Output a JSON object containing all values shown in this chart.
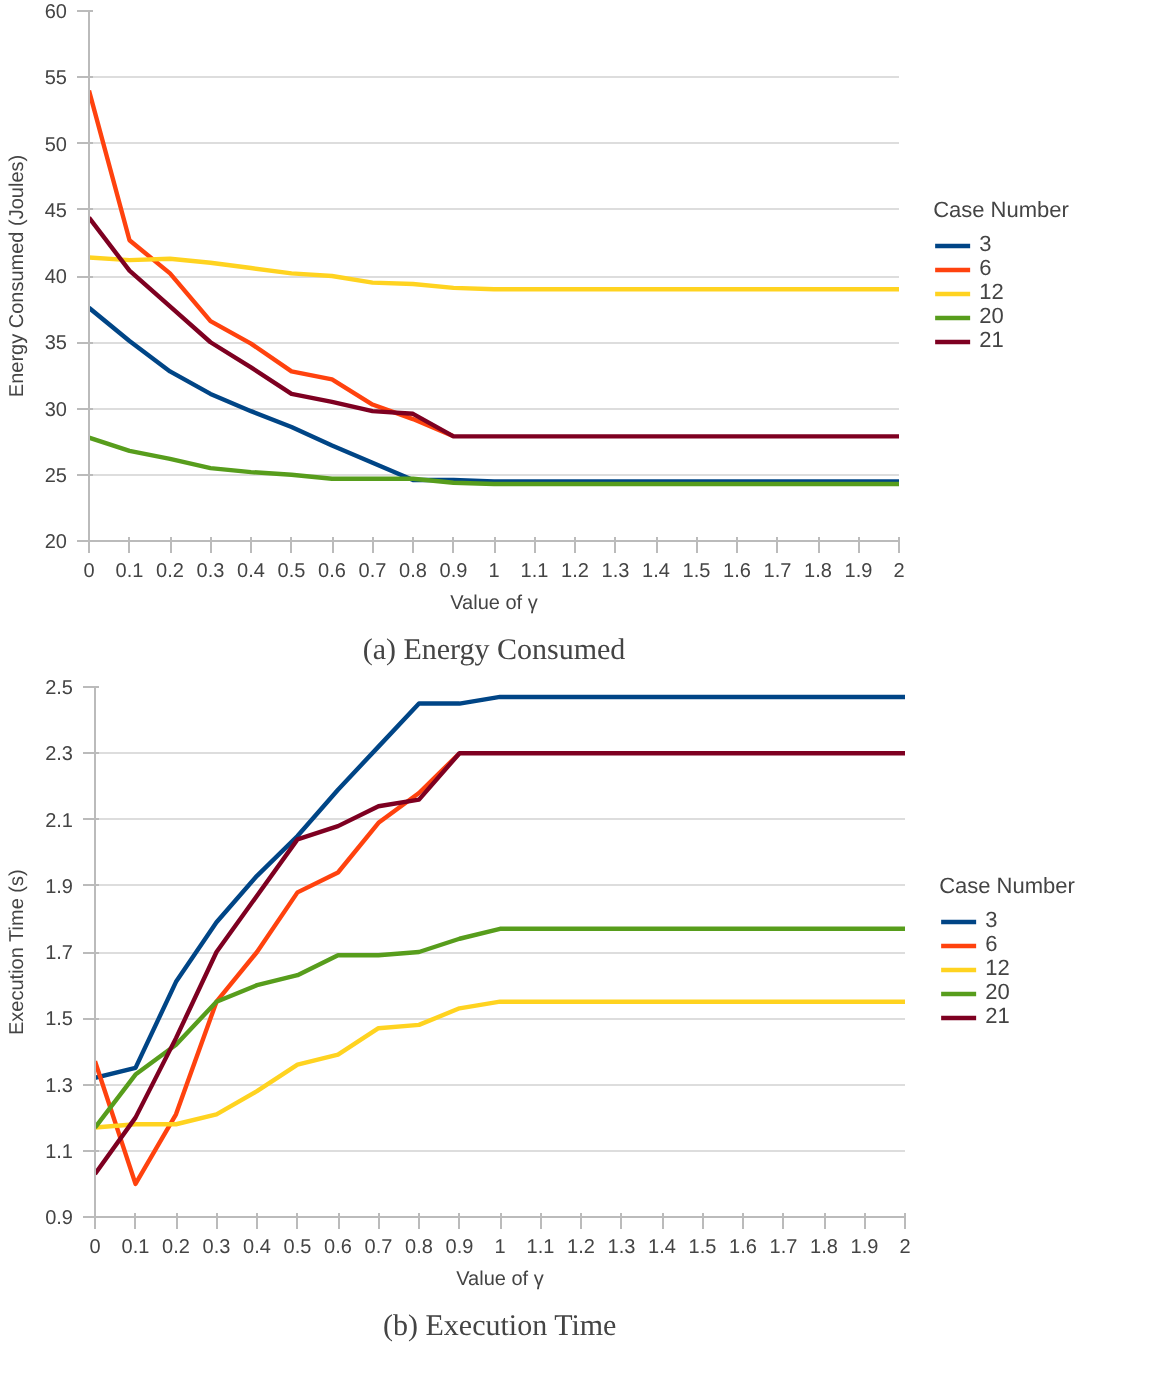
{
  "chart_data": [
    {
      "type": "line",
      "title": "(a) Energy Consumed",
      "xlabel": "Value of γ",
      "ylabel": "Energy Consumed (Joules)",
      "legend_title": "Case Number",
      "legend": "right",
      "grid": "y",
      "marker": "none",
      "line_style": "solid",
      "x": [
        0,
        0.1,
        0.2,
        0.3,
        0.4,
        0.5,
        0.6,
        0.7,
        0.8,
        0.9,
        1,
        1.1,
        1.2,
        1.3,
        1.4,
        1.5,
        1.6,
        1.7,
        1.8,
        1.9,
        2
      ],
      "xlim": [
        0,
        2
      ],
      "xticks": [
        0,
        0.1,
        0.2,
        0.3,
        0.4,
        0.5,
        0.6,
        0.7,
        0.8,
        0.9,
        1,
        1.1,
        1.2,
        1.3,
        1.4,
        1.5,
        1.6,
        1.7,
        1.8,
        1.9,
        2
      ],
      "ylim": [
        20,
        60
      ],
      "yticks": [
        20,
        25,
        30,
        35,
        40,
        45,
        50,
        55,
        60
      ],
      "series": [
        {
          "name": "3",
          "color": "#004586",
          "values": [
            37.6,
            35.1,
            32.8,
            31.1,
            29.8,
            28.6,
            27.2,
            25.9,
            24.6,
            24.6,
            24.5,
            24.5,
            24.5,
            24.5,
            24.5,
            24.5,
            24.5,
            24.5,
            24.5,
            24.5,
            24.5
          ]
        },
        {
          "name": "6",
          "color": "#ff420e",
          "values": [
            54,
            42.7,
            40.2,
            36.6,
            34.9,
            32.8,
            32.2,
            30.3,
            29.2,
            27.9,
            null,
            null,
            null,
            null,
            null,
            null,
            null,
            null,
            null,
            null,
            null
          ]
        },
        {
          "name": "12",
          "color": "#ffd320",
          "values": [
            41.4,
            41.2,
            41.3,
            41.0,
            40.6,
            40.2,
            40.0,
            39.5,
            39.4,
            39.1,
            39.0,
            39.0,
            39.0,
            39.0,
            39.0,
            39.0,
            39.0,
            39.0,
            39.0,
            39.0,
            39.0
          ]
        },
        {
          "name": "20",
          "color": "#579d1c",
          "values": [
            27.8,
            26.8,
            26.2,
            25.5,
            25.2,
            25.0,
            24.7,
            24.7,
            24.7,
            24.4,
            24.3,
            24.3,
            24.3,
            24.3,
            24.3,
            24.3,
            24.3,
            24.3,
            24.3,
            24.3,
            24.3
          ]
        },
        {
          "name": "21",
          "color": "#7e0021",
          "values": [
            44.4,
            40.4,
            37.7,
            35.0,
            33.1,
            31.1,
            30.5,
            29.8,
            29.6,
            27.9,
            27.9,
            27.9,
            27.9,
            27.9,
            27.9,
            27.9,
            27.9,
            27.9,
            27.9,
            27.9,
            27.9
          ]
        }
      ]
    },
    {
      "type": "line",
      "title": "(b) Execution Time",
      "xlabel": "Value of γ",
      "ylabel": "Execution Time (s)",
      "legend_title": "Case Number",
      "legend": "right",
      "grid": "y",
      "marker": "none",
      "line_style": "solid",
      "x": [
        0,
        0.1,
        0.2,
        0.3,
        0.4,
        0.5,
        0.6,
        0.7,
        0.8,
        0.9,
        1,
        1.1,
        1.2,
        1.3,
        1.4,
        1.5,
        1.6,
        1.7,
        1.8,
        1.9,
        2
      ],
      "xlim": [
        0,
        2
      ],
      "xticks": [
        0,
        0.1,
        0.2,
        0.3,
        0.4,
        0.5,
        0.6,
        0.7,
        0.8,
        0.9,
        1,
        1.1,
        1.2,
        1.3,
        1.4,
        1.5,
        1.6,
        1.7,
        1.8,
        1.9,
        2
      ],
      "ylim": [
        0.9,
        2.5
      ],
      "yticks": [
        0.9,
        1.1,
        1.3,
        1.5,
        1.7,
        1.9,
        2.1,
        2.3,
        2.5
      ],
      "series": [
        {
          "name": "3",
          "color": "#004586",
          "values": [
            1.32,
            1.35,
            1.61,
            1.79,
            1.93,
            2.05,
            2.19,
            2.32,
            2.45,
            2.45,
            2.47,
            2.47,
            2.47,
            2.47,
            2.47,
            2.47,
            2.47,
            2.47,
            2.47,
            2.47,
            2.47
          ]
        },
        {
          "name": "6",
          "color": "#ff420e",
          "values": [
            1.37,
            1.0,
            1.21,
            1.55,
            1.7,
            1.88,
            1.94,
            2.09,
            2.18,
            2.3,
            null,
            null,
            null,
            null,
            null,
            null,
            null,
            null,
            null,
            null,
            null
          ]
        },
        {
          "name": "12",
          "color": "#ffd320",
          "values": [
            1.17,
            1.18,
            1.18,
            1.21,
            1.28,
            1.36,
            1.39,
            1.47,
            1.48,
            1.53,
            1.55,
            1.55,
            1.55,
            1.55,
            1.55,
            1.55,
            1.55,
            1.55,
            1.55,
            1.55,
            1.55
          ]
        },
        {
          "name": "20",
          "color": "#579d1c",
          "values": [
            1.17,
            1.33,
            1.42,
            1.55,
            1.6,
            1.63,
            1.69,
            1.69,
            1.7,
            1.74,
            1.77,
            1.77,
            1.77,
            1.77,
            1.77,
            1.77,
            1.77,
            1.77,
            1.77,
            1.77,
            1.77
          ]
        },
        {
          "name": "21",
          "color": "#7e0021",
          "values": [
            1.03,
            1.2,
            1.44,
            1.7,
            1.87,
            2.04,
            2.08,
            2.14,
            2.16,
            2.3,
            2.3,
            2.3,
            2.3,
            2.3,
            2.3,
            2.3,
            2.3,
            2.3,
            2.3,
            2.3,
            2.3
          ]
        }
      ]
    }
  ]
}
